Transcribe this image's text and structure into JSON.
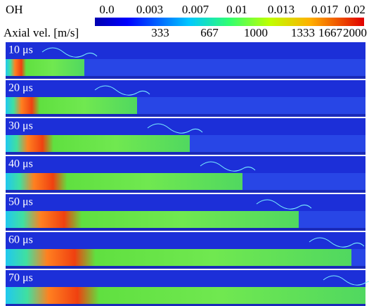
{
  "colorbar_oh": {
    "label": "OH",
    "ticks": [
      "0.0",
      "0.003",
      "0.007",
      "0.01",
      "0.013",
      "0.017",
      "0.02"
    ]
  },
  "colorbar_velocity": {
    "label": "Axial vel. [m/s]",
    "ticks": [
      "333",
      "667",
      "1000",
      "1333",
      "1667",
      "2000"
    ]
  },
  "panels": [
    {
      "label": "10 μs"
    },
    {
      "label": "20 μs"
    },
    {
      "label": "30 μs"
    },
    {
      "label": "40 μs"
    },
    {
      "label": "50 μs"
    },
    {
      "label": "60 μs"
    },
    {
      "label": "70 μs"
    }
  ]
}
